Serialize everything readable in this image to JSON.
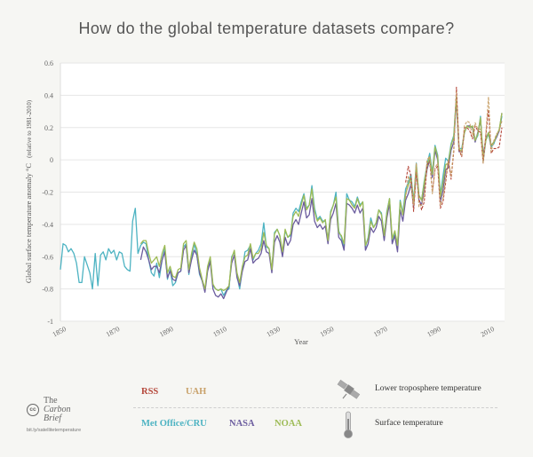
{
  "title": "How do the global temperature datasets compare?",
  "chart_data": {
    "type": "line",
    "xlabel": "Year",
    "ylabel": "Global surface temperature anomaly °C",
    "ylabel_note": "(relative to 1981-2010)",
    "xlim": [
      1850,
      2016
    ],
    "ylim": [
      -1,
      0.6
    ],
    "x_ticks": [
      1850,
      1870,
      1890,
      1910,
      1930,
      1950,
      1970,
      1990,
      2010
    ],
    "y_ticks": [
      {
        "value": 0.6,
        "label": "0.6"
      },
      {
        "value": 0.4,
        "label": "0.4"
      },
      {
        "value": 0.2,
        "label": "0.2"
      },
      {
        "value": 0,
        "label": "0"
      },
      {
        "value": -0.2,
        "label": "-0.2"
      },
      {
        "value": -0.4,
        "label": "-0.4"
      },
      {
        "value": -0.6,
        "label": "-0.6"
      },
      {
        "value": -0.8,
        "label": "-0.8"
      },
      {
        "value": -1,
        "label": "-1"
      }
    ],
    "grid": "horizontal",
    "series": [
      {
        "name": "Met Office/CRU",
        "color": "#4db3c2",
        "style": "solid",
        "x": [
          1850,
          1851,
          1852,
          1853,
          1854,
          1855,
          1856,
          1857,
          1858,
          1859,
          1860,
          1861,
          1862,
          1863,
          1864,
          1865,
          1866,
          1867,
          1868,
          1869,
          1870,
          1871,
          1872,
          1873,
          1874,
          1875,
          1876,
          1877,
          1878,
          1879,
          1880,
          1881,
          1882,
          1883,
          1884,
          1885,
          1886,
          1887,
          1888,
          1889,
          1890,
          1891,
          1892,
          1893,
          1894,
          1895,
          1896,
          1897,
          1898,
          1899,
          1900,
          1901,
          1902,
          1903,
          1904,
          1905,
          1906,
          1907,
          1908,
          1909,
          1910,
          1911,
          1912,
          1913,
          1914,
          1915,
          1916,
          1917,
          1918,
          1919,
          1920,
          1921,
          1922,
          1923,
          1924,
          1925,
          1926,
          1927,
          1928,
          1929,
          1930,
          1931,
          1932,
          1933,
          1934,
          1935,
          1936,
          1937,
          1938,
          1939,
          1940,
          1941,
          1942,
          1943,
          1944,
          1945,
          1946,
          1947,
          1948,
          1949,
          1950,
          1951,
          1952,
          1953,
          1954,
          1955,
          1956,
          1957,
          1958,
          1959,
          1960,
          1961,
          1962,
          1963,
          1964,
          1965,
          1966,
          1967,
          1968,
          1969,
          1970,
          1971,
          1972,
          1973,
          1974,
          1975,
          1976,
          1977,
          1978,
          1979,
          1980,
          1981,
          1982,
          1983,
          1984,
          1985,
          1986,
          1987,
          1988,
          1989,
          1990,
          1991,
          1992,
          1993,
          1994,
          1995,
          1996,
          1997,
          1998,
          1999,
          2000,
          2001,
          2002,
          2003,
          2004,
          2005,
          2006,
          2007,
          2008,
          2009,
          2010,
          2011,
          2012,
          2013,
          2014,
          2015
        ],
        "y": [
          -0.68,
          -0.52,
          -0.53,
          -0.57,
          -0.55,
          -0.58,
          -0.64,
          -0.76,
          -0.76,
          -0.6,
          -0.65,
          -0.7,
          -0.8,
          -0.58,
          -0.78,
          -0.59,
          -0.57,
          -0.62,
          -0.55,
          -0.58,
          -0.56,
          -0.62,
          -0.57,
          -0.58,
          -0.66,
          -0.68,
          -0.69,
          -0.38,
          -0.3,
          -0.58,
          -0.53,
          -0.51,
          -0.52,
          -0.62,
          -0.7,
          -0.72,
          -0.64,
          -0.73,
          -0.62,
          -0.55,
          -0.74,
          -0.68,
          -0.78,
          -0.76,
          -0.7,
          -0.69,
          -0.54,
          -0.52,
          -0.71,
          -0.6,
          -0.52,
          -0.59,
          -0.71,
          -0.75,
          -0.81,
          -0.68,
          -0.61,
          -0.78,
          -0.8,
          -0.81,
          -0.8,
          -0.84,
          -0.81,
          -0.8,
          -0.6,
          -0.57,
          -0.72,
          -0.8,
          -0.68,
          -0.57,
          -0.56,
          -0.53,
          -0.62,
          -0.58,
          -0.56,
          -0.52,
          -0.39,
          -0.54,
          -0.55,
          -0.69,
          -0.45,
          -0.43,
          -0.47,
          -0.59,
          -0.44,
          -0.48,
          -0.47,
          -0.33,
          -0.3,
          -0.32,
          -0.26,
          -0.21,
          -0.3,
          -0.28,
          -0.16,
          -0.3,
          -0.37,
          -0.35,
          -0.38,
          -0.38,
          -0.5,
          -0.32,
          -0.28,
          -0.2,
          -0.44,
          -0.48,
          -0.55,
          -0.21,
          -0.25,
          -0.26,
          -0.29,
          -0.23,
          -0.28,
          -0.26,
          -0.54,
          -0.48,
          -0.36,
          -0.42,
          -0.39,
          -0.31,
          -0.33,
          -0.47,
          -0.32,
          -0.24,
          -0.5,
          -0.45,
          -0.53,
          -0.25,
          -0.33,
          -0.18,
          -0.14,
          -0.09,
          -0.26,
          -0.02,
          -0.22,
          -0.25,
          -0.13,
          -0.03,
          0.04,
          -0.08,
          0.09,
          0.03,
          -0.22,
          -0.1,
          0.01,
          -0.01,
          0.1,
          0.15,
          0.4,
          0.07,
          0.07,
          0.17,
          0.21,
          0.2,
          0.21,
          0.12,
          0.15,
          0.27,
          -0.01,
          0.12,
          0.16,
          0.08,
          0.1,
          0.15,
          0.18,
          0.27
        ]
      },
      {
        "name": "NASA",
        "color": "#6b5c9e",
        "style": "solid",
        "x": [
          1880,
          1881,
          1882,
          1883,
          1884,
          1885,
          1886,
          1887,
          1888,
          1889,
          1890,
          1891,
          1892,
          1893,
          1894,
          1895,
          1896,
          1897,
          1898,
          1899,
          1900,
          1901,
          1902,
          1903,
          1904,
          1905,
          1906,
          1907,
          1908,
          1909,
          1910,
          1911,
          1912,
          1913,
          1914,
          1915,
          1916,
          1917,
          1918,
          1919,
          1920,
          1921,
          1922,
          1923,
          1924,
          1925,
          1926,
          1927,
          1928,
          1929,
          1930,
          1931,
          1932,
          1933,
          1934,
          1935,
          1936,
          1937,
          1938,
          1939,
          1940,
          1941,
          1942,
          1943,
          1944,
          1945,
          1946,
          1947,
          1948,
          1949,
          1950,
          1951,
          1952,
          1953,
          1954,
          1955,
          1956,
          1957,
          1958,
          1959,
          1960,
          1961,
          1962,
          1963,
          1964,
          1965,
          1966,
          1967,
          1968,
          1969,
          1970,
          1971,
          1972,
          1973,
          1974,
          1975,
          1976,
          1977,
          1978,
          1979,
          1980,
          1981,
          1982,
          1983,
          1984,
          1985,
          1986,
          1987,
          1988,
          1989,
          1990,
          1991,
          1992,
          1993,
          1994,
          1995,
          1996,
          1997,
          1998,
          1999,
          2000,
          2001,
          2002,
          2003,
          2004,
          2005,
          2006,
          2007,
          2008,
          2009,
          2010,
          2011,
          2012,
          2013,
          2014,
          2015
        ],
        "y": [
          -0.62,
          -0.54,
          -0.57,
          -0.62,
          -0.68,
          -0.66,
          -0.66,
          -0.7,
          -0.62,
          -0.57,
          -0.73,
          -0.69,
          -0.74,
          -0.75,
          -0.7,
          -0.69,
          -0.56,
          -0.53,
          -0.7,
          -0.62,
          -0.56,
          -0.59,
          -0.7,
          -0.75,
          -0.82,
          -0.69,
          -0.63,
          -0.8,
          -0.84,
          -0.85,
          -0.83,
          -0.86,
          -0.82,
          -0.78,
          -0.64,
          -0.59,
          -0.73,
          -0.78,
          -0.69,
          -0.63,
          -0.62,
          -0.55,
          -0.64,
          -0.62,
          -0.61,
          -0.58,
          -0.5,
          -0.57,
          -0.58,
          -0.7,
          -0.51,
          -0.47,
          -0.51,
          -0.6,
          -0.48,
          -0.53,
          -0.5,
          -0.4,
          -0.37,
          -0.4,
          -0.33,
          -0.26,
          -0.36,
          -0.34,
          -0.24,
          -0.38,
          -0.42,
          -0.4,
          -0.43,
          -0.41,
          -0.52,
          -0.37,
          -0.33,
          -0.27,
          -0.48,
          -0.5,
          -0.56,
          -0.27,
          -0.28,
          -0.3,
          -0.33,
          -0.28,
          -0.33,
          -0.3,
          -0.56,
          -0.52,
          -0.42,
          -0.45,
          -0.42,
          -0.35,
          -0.38,
          -0.5,
          -0.36,
          -0.27,
          -0.52,
          -0.47,
          -0.57,
          -0.31,
          -0.38,
          -0.25,
          -0.21,
          -0.15,
          -0.29,
          -0.06,
          -0.25,
          -0.28,
          -0.17,
          -0.06,
          0.0,
          -0.11,
          0.06,
          0.0,
          -0.26,
          -0.19,
          -0.06,
          -0.05,
          0.06,
          0.11,
          0.37,
          0.05,
          0.05,
          0.17,
          0.21,
          0.21,
          0.2,
          0.11,
          0.17,
          0.25,
          0.03,
          0.13,
          0.17,
          0.09,
          0.11,
          0.14,
          0.18,
          0.29
        ]
      },
      {
        "name": "NOAA",
        "color": "#9dbb55",
        "style": "solid",
        "x": [
          1880,
          1881,
          1882,
          1883,
          1884,
          1885,
          1886,
          1887,
          1888,
          1889,
          1890,
          1891,
          1892,
          1893,
          1894,
          1895,
          1896,
          1897,
          1898,
          1899,
          1900,
          1901,
          1902,
          1903,
          1904,
          1905,
          1906,
          1907,
          1908,
          1909,
          1910,
          1911,
          1912,
          1913,
          1914,
          1915,
          1916,
          1917,
          1918,
          1919,
          1920,
          1921,
          1922,
          1923,
          1924,
          1925,
          1926,
          1927,
          1928,
          1929,
          1930,
          1931,
          1932,
          1933,
          1934,
          1935,
          1936,
          1937,
          1938,
          1939,
          1940,
          1941,
          1942,
          1943,
          1944,
          1945,
          1946,
          1947,
          1948,
          1949,
          1950,
          1951,
          1952,
          1953,
          1954,
          1955,
          1956,
          1957,
          1958,
          1959,
          1960,
          1961,
          1962,
          1963,
          1964,
          1965,
          1966,
          1967,
          1968,
          1969,
          1970,
          1971,
          1972,
          1973,
          1974,
          1975,
          1976,
          1977,
          1978,
          1979,
          1980,
          1981,
          1982,
          1983,
          1984,
          1985,
          1986,
          1987,
          1988,
          1989,
          1990,
          1991,
          1992,
          1993,
          1994,
          1995,
          1996,
          1997,
          1998,
          1999,
          2000,
          2001,
          2002,
          2003,
          2004,
          2005,
          2006,
          2007,
          2008,
          2009,
          2010,
          2011,
          2012,
          2013,
          2014,
          2015
        ],
        "y": [
          -0.52,
          -0.5,
          -0.5,
          -0.58,
          -0.64,
          -0.62,
          -0.6,
          -0.66,
          -0.58,
          -0.53,
          -0.7,
          -0.66,
          -0.72,
          -0.73,
          -0.68,
          -0.67,
          -0.52,
          -0.5,
          -0.68,
          -0.58,
          -0.51,
          -0.55,
          -0.67,
          -0.74,
          -0.8,
          -0.66,
          -0.6,
          -0.77,
          -0.8,
          -0.81,
          -0.8,
          -0.81,
          -0.8,
          -0.78,
          -0.61,
          -0.56,
          -0.7,
          -0.76,
          -0.66,
          -0.6,
          -0.59,
          -0.52,
          -0.61,
          -0.58,
          -0.58,
          -0.55,
          -0.45,
          -0.53,
          -0.55,
          -0.68,
          -0.46,
          -0.43,
          -0.47,
          -0.57,
          -0.43,
          -0.48,
          -0.46,
          -0.35,
          -0.32,
          -0.35,
          -0.28,
          -0.22,
          -0.31,
          -0.28,
          -0.18,
          -0.32,
          -0.38,
          -0.36,
          -0.39,
          -0.37,
          -0.5,
          -0.33,
          -0.28,
          -0.23,
          -0.45,
          -0.47,
          -0.52,
          -0.24,
          -0.25,
          -0.28,
          -0.3,
          -0.24,
          -0.29,
          -0.26,
          -0.53,
          -0.49,
          -0.38,
          -0.42,
          -0.39,
          -0.31,
          -0.34,
          -0.47,
          -0.33,
          -0.24,
          -0.49,
          -0.44,
          -0.53,
          -0.26,
          -0.34,
          -0.21,
          -0.16,
          -0.11,
          -0.27,
          -0.03,
          -0.22,
          -0.25,
          -0.14,
          -0.04,
          0.02,
          -0.09,
          0.08,
          0.02,
          -0.23,
          -0.14,
          -0.03,
          -0.02,
          0.09,
          0.14,
          0.39,
          0.06,
          0.06,
          0.17,
          0.21,
          0.2,
          0.21,
          0.12,
          0.16,
          0.26,
          0.01,
          0.12,
          0.17,
          0.09,
          0.11,
          0.15,
          0.19,
          0.29
        ]
      },
      {
        "name": "RSS",
        "color": "#b5473a",
        "style": "dashed",
        "x": [
          1979,
          1980,
          1981,
          1982,
          1983,
          1984,
          1985,
          1986,
          1987,
          1988,
          1989,
          1990,
          1991,
          1992,
          1993,
          1994,
          1995,
          1996,
          1997,
          1998,
          1999,
          2000,
          2001,
          2002,
          2003,
          2004,
          2005,
          2006,
          2007,
          2008,
          2009,
          2010,
          2011,
          2012,
          2013,
          2014,
          2015
        ],
        "y": [
          -0.14,
          -0.04,
          -0.1,
          -0.32,
          -0.08,
          -0.24,
          -0.31,
          -0.26,
          -0.03,
          -0.01,
          -0.2,
          -0.06,
          -0.04,
          -0.3,
          -0.26,
          -0.14,
          0.0,
          -0.12,
          0.05,
          0.45,
          0.06,
          0.02,
          0.2,
          0.2,
          0.18,
          0.13,
          0.21,
          0.18,
          0.17,
          -0.02,
          0.15,
          0.31,
          0.04,
          0.07,
          0.07,
          0.08,
          0.2
        ]
      },
      {
        "name": "UAH",
        "color": "#c9a26b",
        "style": "dashed",
        "x": [
          1979,
          1980,
          1981,
          1982,
          1983,
          1984,
          1985,
          1986,
          1987,
          1988,
          1989,
          1990,
          1991,
          1992,
          1993,
          1994,
          1995,
          1996,
          1997,
          1998,
          1999,
          2000,
          2001,
          2002,
          2003,
          2004,
          2005,
          2006,
          2007,
          2008,
          2009,
          2010,
          2011,
          2012,
          2013,
          2014,
          2015
        ],
        "y": [
          -0.24,
          -0.1,
          -0.15,
          -0.28,
          -0.02,
          -0.29,
          -0.28,
          -0.22,
          0.0,
          0.02,
          -0.21,
          -0.05,
          -0.02,
          -0.28,
          -0.24,
          -0.11,
          0.0,
          -0.1,
          0.07,
          0.42,
          0.08,
          0.03,
          0.21,
          0.24,
          0.23,
          0.14,
          0.23,
          0.19,
          0.19,
          -0.02,
          0.16,
          0.39,
          0.05,
          0.12,
          0.16,
          0.18,
          0.24
        ]
      }
    ]
  },
  "legend": {
    "satellite": {
      "items": [
        "RSS",
        "UAH"
      ],
      "description": "Lower troposphere temperature",
      "icon": "satellite-icon"
    },
    "surface": {
      "items": [
        "Met Office/CRU",
        "NASA",
        "NOAA"
      ],
      "description": "Surface temperature",
      "icon": "thermometer-icon"
    }
  },
  "brand": {
    "line1": "The",
    "line2": "Carbon",
    "line3": "Brief",
    "license_icon": "cc-icon",
    "url": "bit.ly/satellitetemperature"
  }
}
